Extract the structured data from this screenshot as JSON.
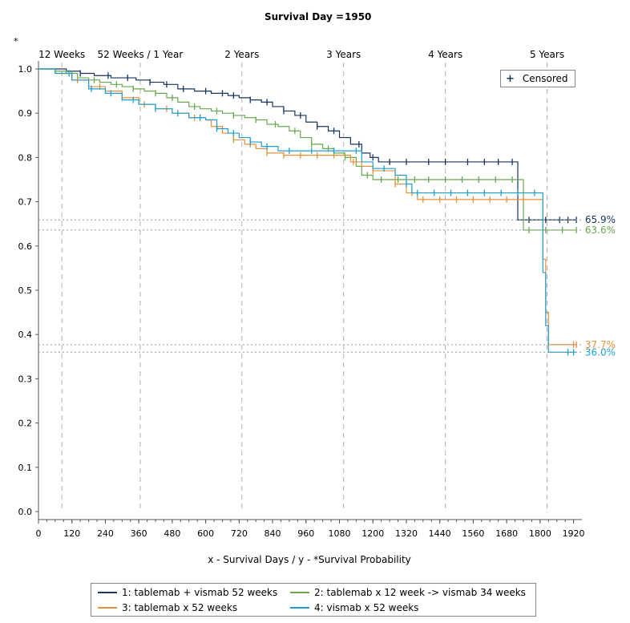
{
  "header": {
    "label": "Survival Day =",
    "value": "1950",
    "y_marker": "*"
  },
  "milestones": [
    {
      "label": "12 Weeks",
      "day": 84
    },
    {
      "label": "52 Weeks / 1 Year",
      "day": 365
    },
    {
      "label": "2 Years",
      "day": 730
    },
    {
      "label": "3 Years",
      "day": 1095
    },
    {
      "label": "4 Years",
      "day": 1460
    },
    {
      "label": "5 Years",
      "day": 1825
    }
  ],
  "censored_legend": {
    "symbol": "+",
    "label": "Censored"
  },
  "colors": {
    "s1": "#17365d",
    "s2": "#6aa84f",
    "s3": "#e69138",
    "s4": "#1f9fcf",
    "grid": "#b0b0b0",
    "axis": "#555555"
  },
  "chart_data": {
    "type": "line",
    "title": "",
    "xlabel": "x - Survival Days / y - *Survival Probability",
    "ylabel": "",
    "xlim": [
      0,
      1950
    ],
    "ylim": [
      0,
      1.0
    ],
    "x_ticks": [
      0,
      120,
      240,
      360,
      480,
      600,
      720,
      840,
      960,
      1080,
      1200,
      1320,
      1440,
      1560,
      1680,
      1800,
      1920
    ],
    "y_ticks": [
      "0.0",
      "0.1",
      "0.2",
      "0.3",
      "0.4",
      "0.5",
      "0.6",
      "0.7",
      "0.8",
      "0.9",
      "1.0"
    ],
    "reference_labels": [
      {
        "value": 0.659,
        "text": "65.9%",
        "series": "s1"
      },
      {
        "value": 0.636,
        "text": "63.6%",
        "series": "s2"
      },
      {
        "value": 0.377,
        "text": "37.7%",
        "series": "s3"
      },
      {
        "value": 0.36,
        "text": "36.0%",
        "series": "s4"
      }
    ],
    "series": [
      {
        "id": "s1",
        "name": "1: tablemab + vismab 52 weeks",
        "x": [
          0,
          100,
          150,
          200,
          260,
          300,
          350,
          400,
          450,
          500,
          560,
          620,
          680,
          720,
          760,
          800,
          840,
          880,
          920,
          960,
          1000,
          1040,
          1080,
          1120,
          1160,
          1190,
          1220,
          1300,
          1400,
          1500,
          1600,
          1715,
          1720,
          1800,
          1900,
          1930
        ],
        "y": [
          1.0,
          0.995,
          0.99,
          0.985,
          0.98,
          0.98,
          0.975,
          0.97,
          0.965,
          0.955,
          0.95,
          0.945,
          0.94,
          0.935,
          0.93,
          0.925,
          0.915,
          0.905,
          0.895,
          0.88,
          0.87,
          0.86,
          0.845,
          0.83,
          0.81,
          0.8,
          0.79,
          0.79,
          0.79,
          0.79,
          0.79,
          0.79,
          0.659,
          0.659,
          0.659,
          0.659
        ]
      },
      {
        "id": "s2",
        "name": "2: tablemab x 12 week -> vismab 34 weeks",
        "x": [
          0,
          60,
          100,
          140,
          180,
          220,
          260,
          300,
          340,
          380,
          420,
          460,
          500,
          540,
          580,
          620,
          660,
          700,
          740,
          780,
          820,
          860,
          900,
          940,
          980,
          1020,
          1060,
          1100,
          1140,
          1160,
          1200,
          1300,
          1400,
          1500,
          1600,
          1720,
          1740,
          1800,
          1900,
          1930
        ],
        "y": [
          1.0,
          0.995,
          0.99,
          0.98,
          0.975,
          0.97,
          0.965,
          0.96,
          0.955,
          0.95,
          0.945,
          0.935,
          0.925,
          0.915,
          0.91,
          0.905,
          0.9,
          0.895,
          0.89,
          0.885,
          0.875,
          0.87,
          0.86,
          0.845,
          0.83,
          0.82,
          0.81,
          0.8,
          0.78,
          0.76,
          0.75,
          0.75,
          0.75,
          0.75,
          0.75,
          0.75,
          0.636,
          0.636,
          0.636,
          0.636
        ]
      },
      {
        "id": "s3",
        "name": "3: tablemab x 52 weeks",
        "x": [
          0,
          60,
          120,
          180,
          240,
          300,
          360,
          420,
          480,
          540,
          600,
          620,
          660,
          700,
          740,
          780,
          820,
          880,
          940,
          1000,
          1080,
          1120,
          1160,
          1200,
          1280,
          1320,
          1360,
          1400,
          1500,
          1600,
          1700,
          1790,
          1810,
          1820,
          1830,
          1930
        ],
        "y": [
          1.0,
          0.99,
          0.975,
          0.96,
          0.95,
          0.935,
          0.92,
          0.91,
          0.9,
          0.89,
          0.885,
          0.87,
          0.855,
          0.84,
          0.83,
          0.82,
          0.81,
          0.805,
          0.805,
          0.805,
          0.805,
          0.79,
          0.78,
          0.77,
          0.74,
          0.72,
          0.705,
          0.705,
          0.705,
          0.705,
          0.705,
          0.705,
          0.57,
          0.45,
          0.377,
          0.377
        ]
      },
      {
        "id": "s4",
        "name": "4: vismab x 52 weeks",
        "x": [
          0,
          60,
          120,
          180,
          240,
          300,
          360,
          420,
          480,
          540,
          600,
          640,
          680,
          720,
          760,
          800,
          860,
          920,
          980,
          1040,
          1100,
          1160,
          1200,
          1280,
          1320,
          1340,
          1380,
          1450,
          1550,
          1650,
          1750,
          1790,
          1810,
          1820,
          1830,
          1930
        ],
        "y": [
          1.0,
          0.99,
          0.975,
          0.955,
          0.945,
          0.93,
          0.92,
          0.91,
          0.9,
          0.89,
          0.885,
          0.865,
          0.855,
          0.845,
          0.835,
          0.825,
          0.815,
          0.815,
          0.815,
          0.815,
          0.815,
          0.79,
          0.775,
          0.76,
          0.74,
          0.72,
          0.72,
          0.72,
          0.72,
          0.72,
          0.72,
          0.72,
          0.54,
          0.42,
          0.36,
          0.36
        ]
      }
    ],
    "censor_ticks": {
      "s1": [
        150,
        250,
        320,
        400,
        460,
        520,
        600,
        660,
        700,
        760,
        820,
        880,
        940,
        1000,
        1060,
        1150,
        1200,
        1260,
        1320,
        1400,
        1460,
        1540,
        1600,
        1650,
        1700,
        1760,
        1820,
        1870,
        1900,
        1930
      ],
      "s2": [
        120,
        200,
        280,
        340,
        420,
        480,
        560,
        640,
        700,
        780,
        850,
        920,
        980,
        1040,
        1100,
        1180,
        1230,
        1290,
        1350,
        1400,
        1460,
        1520,
        1580,
        1640,
        1700,
        1760,
        1820,
        1880,
        1930
      ],
      "s3": [
        140,
        220,
        300,
        380,
        460,
        560,
        640,
        700,
        760,
        820,
        880,
        940,
        1000,
        1060,
        1130,
        1200,
        1280,
        1340,
        1380,
        1440,
        1500,
        1560,
        1620,
        1680,
        1740,
        1920,
        1930
      ],
      "s4": [
        110,
        190,
        260,
        340,
        420,
        500,
        580,
        640,
        700,
        760,
        820,
        900,
        980,
        1060,
        1140,
        1240,
        1320,
        1360,
        1420,
        1480,
        1540,
        1600,
        1660,
        1720,
        1780,
        1900,
        1920
      ]
    }
  }
}
